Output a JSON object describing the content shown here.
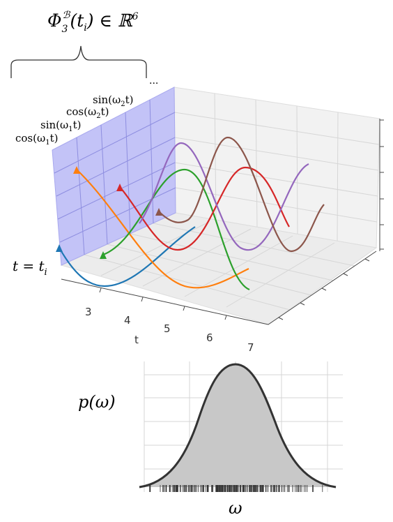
{
  "formula": {
    "symbol": "Φ",
    "index": "3",
    "superscript": "ℬ",
    "argument": "(t",
    "argument_sub": "i",
    "rest": ") ∈ ℝ",
    "power": "6"
  },
  "ellipsis": "...",
  "feature_labels": [
    {
      "func": "cos(ω",
      "sub": "1",
      "tail": "t)"
    },
    {
      "func": "sin(ω",
      "sub": "1",
      "tail": "t)"
    },
    {
      "func": "cos(ω",
      "sub": "2",
      "tail": "t)"
    },
    {
      "func": "sin(ω",
      "sub": "2",
      "tail": "t)"
    }
  ],
  "time_label": {
    "text": "t = t",
    "sub": "i"
  },
  "x_axis": {
    "label": "t",
    "ticks": [
      "3",
      "4",
      "5",
      "6",
      "7"
    ]
  },
  "density": {
    "y_label": "p(ω)",
    "x_label": "ω"
  }
}
